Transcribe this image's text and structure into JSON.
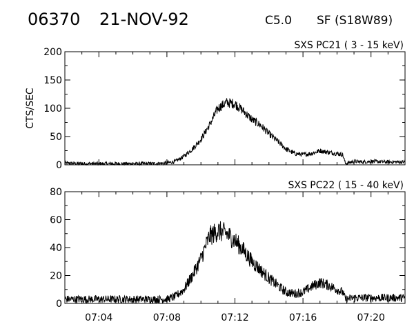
{
  "header": {
    "event_id": "06370",
    "date": "21-NOV-92",
    "goes_class": "C5.0",
    "location": "SF (S18W89)"
  },
  "chart_data": [
    {
      "type": "line",
      "title": "SXS PC21  (  3 - 15 keV)",
      "ylabel": "CTS/SEC",
      "ylim": [
        0,
        200
      ],
      "yticks": [
        0,
        50,
        100,
        150,
        200
      ],
      "xlim": [
        "07:02:00",
        "07:22:00"
      ],
      "xticks": [
        "07:04",
        "07:08",
        "07:12",
        "07:16",
        "07:20"
      ],
      "color": "#000000",
      "series": [
        {
          "x": [
            "07:02:00",
            "07:03:00",
            "07:04:00",
            "07:05:00",
            "07:06:00",
            "07:07:00",
            "07:08:00",
            "07:08:30",
            "07:09:00",
            "07:09:30",
            "07:10:00",
            "07:10:30",
            "07:11:00",
            "07:11:30",
            "07:12:00",
            "07:12:30",
            "07:13:00",
            "07:13:30",
            "07:14:00",
            "07:14:30",
            "07:15:00",
            "07:15:30",
            "07:16:00",
            "07:16:30",
            "07:17:00",
            "07:17:30",
            "07:18:00",
            "07:18:20",
            "07:18:30",
            "07:19:00",
            "07:19:30",
            "07:20:00",
            "07:21:00",
            "07:22:00"
          ],
          "y": [
            3,
            2,
            2,
            2,
            2,
            2,
            3,
            6,
            15,
            28,
            45,
            70,
            100,
            110,
            108,
            95,
            80,
            70,
            55,
            42,
            28,
            20,
            18,
            20,
            25,
            22,
            20,
            18,
            2,
            6,
            5,
            6,
            5,
            5
          ]
        }
      ]
    },
    {
      "type": "line",
      "title": "SXS PC22  ( 15 - 40 keV)",
      "ylabel": "",
      "ylim": [
        0,
        80
      ],
      "yticks": [
        0,
        20,
        40,
        60,
        80
      ],
      "xlim": [
        "07:02:00",
        "07:22:00"
      ],
      "xticks": [
        "07:04",
        "07:08",
        "07:12",
        "07:16",
        "07:20"
      ],
      "color": "#000000",
      "series": [
        {
          "x": [
            "07:02:00",
            "07:03:00",
            "07:04:00",
            "07:05:00",
            "07:06:00",
            "07:07:00",
            "07:08:00",
            "07:08:30",
            "07:09:00",
            "07:09:30",
            "07:10:00",
            "07:10:30",
            "07:11:00",
            "07:11:30",
            "07:12:00",
            "07:12:30",
            "07:13:00",
            "07:13:30",
            "07:14:00",
            "07:14:30",
            "07:15:00",
            "07:15:30",
            "07:16:00",
            "07:16:30",
            "07:17:00",
            "07:17:30",
            "07:18:00",
            "07:18:20",
            "07:18:30",
            "07:19:00",
            "07:19:30",
            "07:20:00",
            "07:21:00",
            "07:22:00"
          ],
          "y": [
            3,
            3,
            3,
            3,
            3,
            3,
            3,
            5,
            10,
            20,
            32,
            48,
            52,
            50,
            45,
            38,
            30,
            24,
            18,
            13,
            8,
            7,
            8,
            12,
            15,
            13,
            10,
            8,
            3,
            4,
            4,
            4,
            4,
            4
          ]
        }
      ]
    }
  ]
}
